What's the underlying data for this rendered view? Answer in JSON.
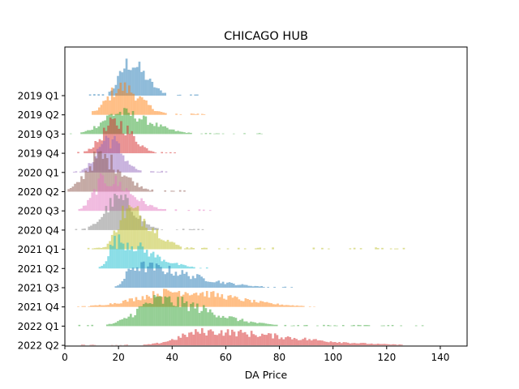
{
  "chart_data": {
    "type": "ridgeline-histogram",
    "title": "CHICAGO HUB",
    "xlabel": "DA Price",
    "ylabel": "",
    "xlim": [
      0,
      150
    ],
    "xticks": [
      0,
      20,
      40,
      60,
      80,
      100,
      120,
      140
    ],
    "grid": false,
    "alpha": 0.5,
    "series": [
      {
        "name": "2019 Q1",
        "color": "#1f77b4",
        "range": [
          9,
          53
        ],
        "mode": 24,
        "sd_left": 3.5,
        "sd_right": 6,
        "peak": 0.95
      },
      {
        "name": "2019 Q2",
        "color": "#ff7f0e",
        "range": [
          10,
          52
        ],
        "mode": 21,
        "sd_left": 5,
        "sd_right": 7,
        "peak": 0.8
      },
      {
        "name": "2019 Q3",
        "color": "#2ca02c",
        "range": [
          1,
          76
        ],
        "mode": 20,
        "sd_left": 6,
        "sd_right": 11,
        "peak": 0.62
      },
      {
        "name": "2019 Q4",
        "color": "#d62728",
        "range": [
          3,
          42
        ],
        "mode": 19,
        "sd_left": 5,
        "sd_right": 6,
        "peak": 0.88
      },
      {
        "name": "2020 Q1",
        "color": "#9467bd",
        "range": [
          3,
          39
        ],
        "mode": 16,
        "sd_left": 4,
        "sd_right": 5,
        "peak": 1.0
      },
      {
        "name": "2020 Q2",
        "color": "#8c564b",
        "range": [
          1,
          45
        ],
        "mode": 13,
        "sd_left": 5,
        "sd_right": 8,
        "peak": 1.0
      },
      {
        "name": "2020 Q3",
        "color": "#e377c2",
        "range": [
          5,
          54
        ],
        "mode": 15,
        "sd_left": 4,
        "sd_right": 9,
        "peak": 0.92
      },
      {
        "name": "2020 Q4",
        "color": "#7f7f7f",
        "range": [
          3,
          51
        ],
        "mode": 20,
        "sd_left": 5,
        "sd_right": 6,
        "peak": 0.9
      },
      {
        "name": "2021 Q1",
        "color": "#bcbd22",
        "range": [
          6,
          128
        ],
        "mode": 23,
        "sd_left": 3.5,
        "sd_right": 9,
        "peak": 1.15
      },
      {
        "name": "2021 Q2",
        "color": "#17becf",
        "range": [
          11,
          55
        ],
        "mode": 19,
        "sd_left": 2.5,
        "sd_right": 12,
        "peak": 0.8
      },
      {
        "name": "2021 Q3",
        "color": "#1f77b4",
        "range": [
          17,
          85
        ],
        "mode": 26,
        "sd_left": 3,
        "sd_right": 20,
        "peak": 0.62
      },
      {
        "name": "2021 Q4",
        "color": "#ff7f0e",
        "range": [
          3,
          95
        ],
        "mode": 42,
        "sd_left": 14,
        "sd_right": 20,
        "peak": 0.45
      },
      {
        "name": "2022 Q1",
        "color": "#2ca02c",
        "range": [
          5,
          133
        ],
        "mode": 35,
        "sd_left": 8,
        "sd_right": 18,
        "peak": 0.75
      },
      {
        "name": "2022 Q2",
        "color": "#d62728",
        "range": [
          6,
          127
        ],
        "mode": 52,
        "sd_left": 9,
        "sd_right": 30,
        "peak": 0.4
      }
    ]
  }
}
